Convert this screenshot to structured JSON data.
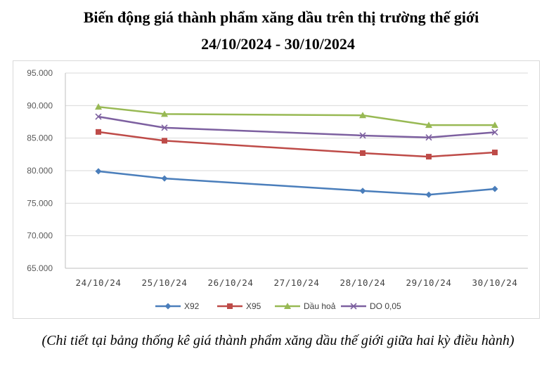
{
  "title_line1": "Biến động giá thành phẩm xăng dầu trên thị trường thế giới",
  "title_line2": "24/10/2024 - 30/10/2024",
  "note": "(Chi tiết tại bảng thống kê giá thành phẩm xăng dầu thế giới giữa hai kỳ điều hành)",
  "chart_data": {
    "type": "line",
    "categories": [
      "24/10/24",
      "25/10/24",
      "26/10/24",
      "27/10/24",
      "28/10/24",
      "29/10/24",
      "30/10/24"
    ],
    "y_ticks": [
      "65.000",
      "70.000",
      "75.000",
      "80.000",
      "85.000",
      "90.000",
      "95.000"
    ],
    "ylim": [
      65000,
      95000
    ],
    "grid": true,
    "legend_position": "bottom",
    "series": [
      {
        "name": "X92",
        "color": "#4a7ebb",
        "marker": "diamond",
        "values": [
          79900,
          78800,
          null,
          null,
          76900,
          76300,
          77200
        ]
      },
      {
        "name": "X95",
        "color": "#be4b48",
        "marker": "square",
        "values": [
          85950,
          84600,
          null,
          null,
          82700,
          82150,
          82800
        ]
      },
      {
        "name": "Dầu hoả",
        "color": "#98b954",
        "marker": "triangle",
        "values": [
          89800,
          88700,
          null,
          null,
          88500,
          87000,
          87000
        ]
      },
      {
        "name": "DO 0,05",
        "color": "#7d60a0",
        "marker": "x",
        "values": [
          88300,
          86600,
          null,
          null,
          85400,
          85100,
          85900
        ]
      }
    ]
  }
}
